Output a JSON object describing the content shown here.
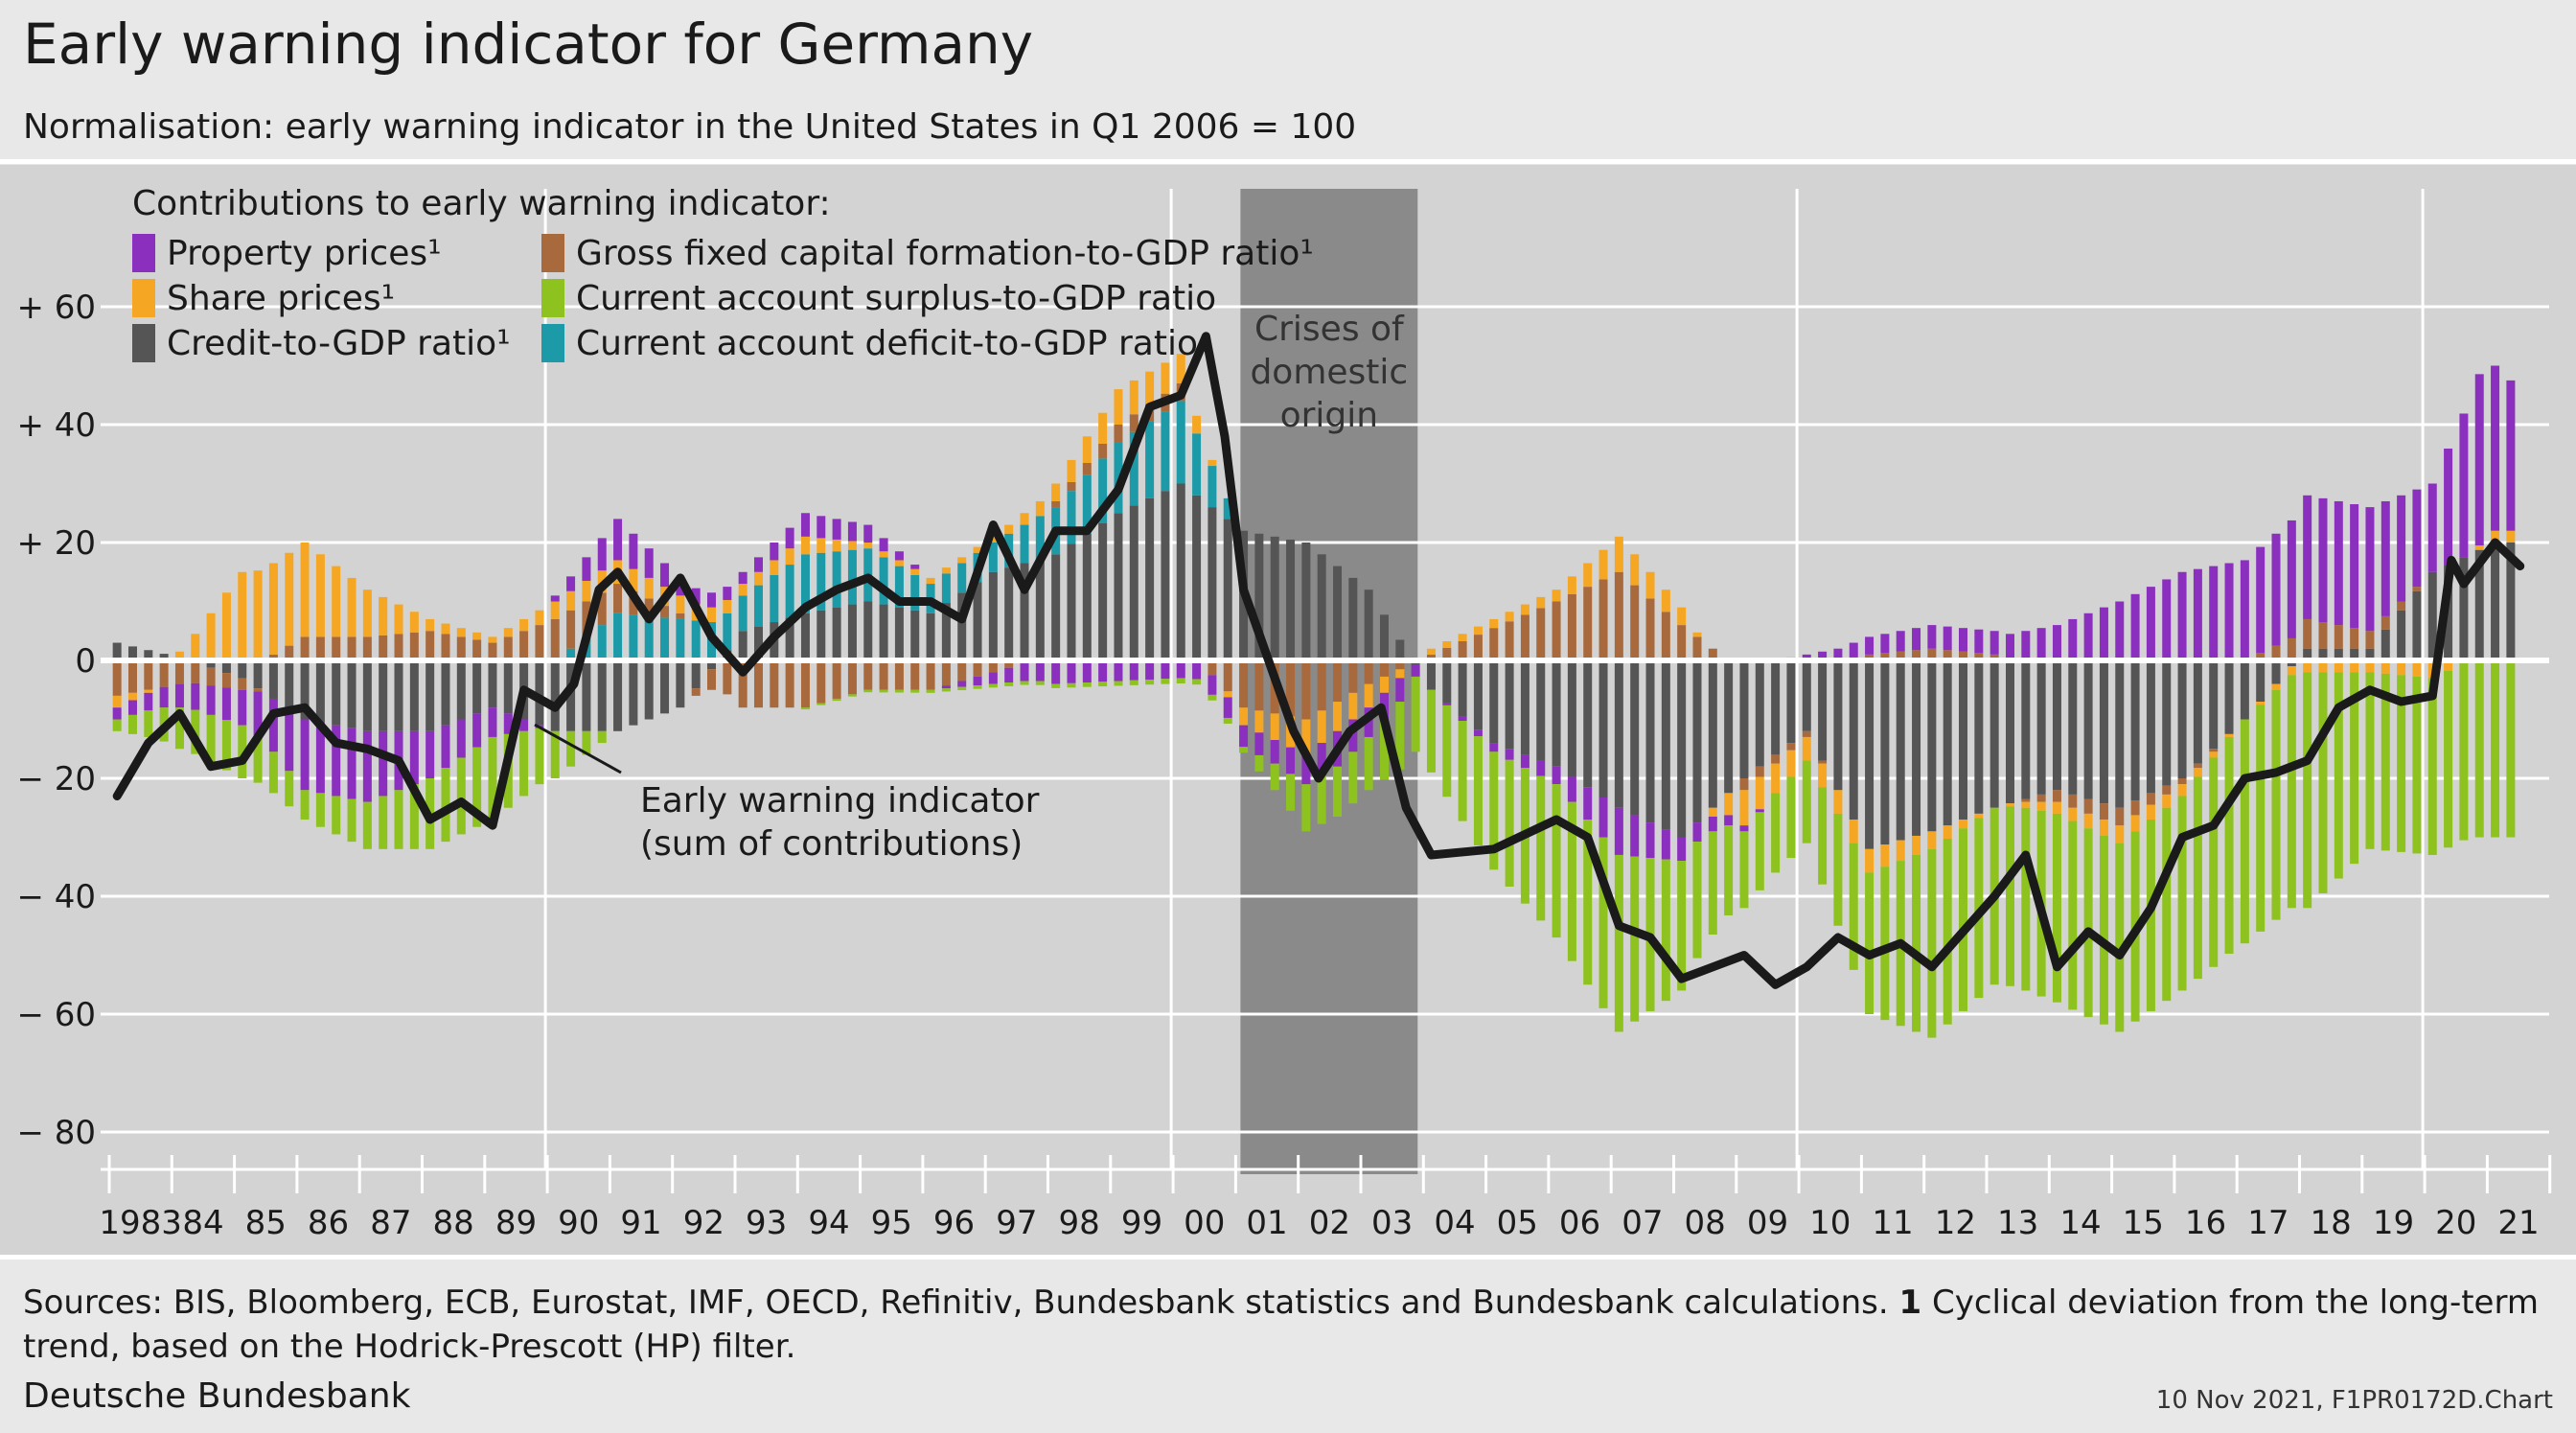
{
  "header": {
    "title": "Early warning indicator for Germany",
    "subtitle": "Normalisation: early warning indicator in the United States in Q1 2006 = 100"
  },
  "footer": {
    "sources_text": "Sources: BIS, Bloomberg, ECB, Eurostat, IMF, OECD, Refinitiv, Bundesbank statistics and Bundesbank calculations.",
    "footnote_marker": "1",
    "footnote_text": "Cyclical deviation from the long-term trend, based on the Hodrick-Prescott (HP) filter.",
    "publisher": "Deutsche Bundesbank",
    "stamp": "10 Nov 2021, F1PR0172D.Chart"
  },
  "chart_data": {
    "type": "bar",
    "stacked": true,
    "frequency": "quarterly",
    "x_start": "1983 Q1",
    "x_end": "2021 Q2",
    "x_tick_labels": [
      "1983",
      "84",
      "85",
      "86",
      "87",
      "88",
      "89",
      "90",
      "91",
      "92",
      "93",
      "94",
      "95",
      "96",
      "97",
      "98",
      "99",
      "00",
      "01",
      "02",
      "03",
      "04",
      "05",
      "06",
      "07",
      "08",
      "09",
      "10",
      "11",
      "12",
      "13",
      "14",
      "15",
      "16",
      "17",
      "18",
      "19",
      "20",
      "21"
    ],
    "ylim": [
      -85,
      80
    ],
    "y_ticks": [
      60,
      40,
      20,
      0,
      -20,
      -40,
      -60,
      -80
    ],
    "y_tick_labels": [
      "+ 60",
      "+ 40",
      "+ 20",
      "0",
      "− 20",
      "− 40",
      "− 60",
      "− 80"
    ],
    "grid": true,
    "legend_title": "Contributions to early warning indicator:",
    "legend_position": "top-left",
    "series": [
      {
        "name": "Property prices¹",
        "color": "#8a2fbe",
        "key": "property"
      },
      {
        "name": "Share prices¹",
        "color": "#f5a623",
        "key": "share"
      },
      {
        "name": "Credit-to-GDP ratio¹",
        "color": "#555555",
        "key": "credit"
      },
      {
        "name": "Gross fixed capital formation-to-GDP ratio¹",
        "color": "#a86a3c",
        "key": "gfcf"
      },
      {
        "name": "Current account surplus-to-GDP ratio",
        "color": "#8dc21f",
        "key": "ca_surplus"
      },
      {
        "name": "Current account deficit-to-GDP ratio",
        "color": "#1d9aa8",
        "key": "ca_deficit"
      }
    ],
    "line_series": {
      "name": "Early warning indicator (sum of contributions)",
      "color": "#1a1a1a"
    },
    "annotations": {
      "crisis_period": {
        "start": "2001 Q1",
        "end": "2003 Q4",
        "label_lines": [
          "Crises of",
          "domestic",
          "origin"
        ],
        "color": "#8a8a8a"
      },
      "line_label_lines": [
        "Early warning indicator",
        "(sum of contributions)"
      ]
    },
    "keyframes": {
      "property": [
        [
          1983,
          -2
        ],
        [
          1984,
          -4
        ],
        [
          1985,
          -6
        ],
        [
          1986,
          -12
        ],
        [
          1987,
          -12
        ],
        [
          1988,
          -8
        ],
        [
          1989,
          -5
        ],
        [
          1990,
          1
        ],
        [
          1991,
          7
        ],
        [
          1992,
          3
        ],
        [
          1993,
          2
        ],
        [
          1994,
          4
        ],
        [
          1995,
          3
        ],
        [
          1996,
          0
        ],
        [
          1998,
          -4
        ],
        [
          2000,
          -3
        ],
        [
          2001.5,
          -4
        ],
        [
          2002.5,
          -6
        ],
        [
          2003.5,
          -4
        ],
        [
          2004,
          0
        ],
        [
          2006,
          -3
        ],
        [
          2007,
          -8
        ],
        [
          2008,
          -4
        ],
        [
          2009,
          -1
        ],
        [
          2010,
          1
        ],
        [
          2011,
          3
        ],
        [
          2012,
          4
        ],
        [
          2013,
          4
        ],
        [
          2014,
          6
        ],
        [
          2015,
          10
        ],
        [
          2016,
          15
        ],
        [
          2017,
          17
        ],
        [
          2018,
          21
        ],
        [
          2019,
          21
        ],
        [
          2020,
          15
        ],
        [
          2020.8,
          30
        ],
        [
          2021.4,
          24
        ]
      ],
      "share": [
        [
          1983,
          -2
        ],
        [
          1984,
          1
        ],
        [
          1985,
          15
        ],
        [
          1986,
          16
        ],
        [
          1987,
          8
        ],
        [
          1988,
          2
        ],
        [
          1989,
          1
        ],
        [
          1990,
          3
        ],
        [
          1991,
          4
        ],
        [
          1993,
          2
        ],
        [
          1994,
          3
        ],
        [
          1995,
          1
        ],
        [
          1997,
          1
        ],
        [
          1998,
          3
        ],
        [
          1999,
          6
        ],
        [
          2000,
          5
        ],
        [
          2001,
          -3
        ],
        [
          2002,
          -6
        ],
        [
          2003,
          -4
        ],
        [
          2004,
          1
        ],
        [
          2006,
          2
        ],
        [
          2007,
          6
        ],
        [
          2008,
          3
        ],
        [
          2009,
          -6
        ],
        [
          2010,
          -4
        ],
        [
          2011,
          -4
        ],
        [
          2012,
          -3
        ],
        [
          2013,
          0
        ],
        [
          2014,
          -2
        ],
        [
          2015,
          -3
        ],
        [
          2016,
          -2
        ],
        [
          2017,
          0
        ],
        [
          2018,
          -2
        ],
        [
          2019,
          -2
        ],
        [
          2020,
          -3
        ],
        [
          2021,
          2
        ]
      ],
      "credit": [
        [
          1983,
          3
        ],
        [
          1984,
          0.5
        ],
        [
          1985,
          -3
        ],
        [
          1986,
          -10
        ],
        [
          1987,
          -12
        ],
        [
          1988,
          -12
        ],
        [
          1989,
          -8
        ],
        [
          1990,
          -12
        ],
        [
          1991,
          -12
        ],
        [
          1992,
          -8
        ],
        [
          1993,
          5
        ],
        [
          1994,
          8
        ],
        [
          1995,
          10
        ],
        [
          1996,
          8
        ],
        [
          1997,
          15
        ],
        [
          1998,
          18
        ],
        [
          1999,
          25
        ],
        [
          2000,
          30
        ],
        [
          2001,
          22
        ],
        [
          2002,
          20
        ],
        [
          2003,
          12
        ],
        [
          2004,
          -5
        ],
        [
          2005,
          -14
        ],
        [
          2006,
          -18
        ],
        [
          2007,
          -25
        ],
        [
          2008,
          -30
        ],
        [
          2009,
          -20
        ],
        [
          2010,
          -12
        ],
        [
          2011,
          -32
        ],
        [
          2012,
          -29
        ],
        [
          2013,
          -25
        ],
        [
          2014,
          -22
        ],
        [
          2015,
          -25
        ],
        [
          2016,
          -20
        ],
        [
          2017,
          -10
        ],
        [
          2018,
          2
        ],
        [
          2019,
          2
        ],
        [
          2020,
          15
        ],
        [
          2021,
          20
        ]
      ],
      "gfcf": [
        [
          1983,
          -6
        ],
        [
          1984,
          -4
        ],
        [
          1985,
          -2
        ],
        [
          1986,
          4
        ],
        [
          1987,
          4
        ],
        [
          1988,
          5
        ],
        [
          1989,
          3
        ],
        [
          1990,
          7
        ],
        [
          1991,
          5
        ],
        [
          1992,
          1
        ],
        [
          1993,
          -8
        ],
        [
          1994,
          -8
        ],
        [
          1995,
          -5
        ],
        [
          1996,
          -5
        ],
        [
          1997,
          -2
        ],
        [
          1998,
          1
        ],
        [
          1999,
          3
        ],
        [
          2000,
          3
        ],
        [
          2001,
          -8
        ],
        [
          2002,
          -10
        ],
        [
          2003,
          -4
        ],
        [
          2004,
          1
        ],
        [
          2006,
          10
        ],
        [
          2007,
          15
        ],
        [
          2008,
          6
        ],
        [
          2009,
          -2
        ],
        [
          2010,
          -1
        ],
        [
          2011,
          1
        ],
        [
          2012,
          2
        ],
        [
          2013,
          1
        ],
        [
          2014,
          -2
        ],
        [
          2015,
          -3
        ],
        [
          2016,
          -1
        ],
        [
          2017,
          0
        ],
        [
          2018,
          5
        ],
        [
          2019,
          3
        ],
        [
          2020,
          0
        ],
        [
          2021,
          0
        ]
      ],
      "ca_surplus": [
        [
          1983,
          -2
        ],
        [
          1984,
          -7
        ],
        [
          1985,
          -9
        ],
        [
          1986,
          -5
        ],
        [
          1987,
          -8
        ],
        [
          1988,
          -12
        ],
        [
          1989,
          -14
        ],
        [
          1990,
          -8
        ],
        [
          1991,
          0
        ],
        [
          2001,
          -1
        ],
        [
          2002,
          -8
        ],
        [
          2003,
          -9
        ],
        [
          2004,
          -14
        ],
        [
          2005,
          -20
        ],
        [
          2006,
          -26
        ],
        [
          2007,
          -30
        ],
        [
          2008,
          -22
        ],
        [
          2009,
          -13
        ],
        [
          2010,
          -14
        ],
        [
          2011,
          -24
        ],
        [
          2012,
          -32
        ],
        [
          2013,
          -30
        ],
        [
          2014,
          -32
        ],
        [
          2015,
          -32
        ],
        [
          2016,
          -33
        ],
        [
          2017,
          -38
        ],
        [
          2018,
          -40
        ],
        [
          2019,
          -30
        ],
        [
          2020,
          -30
        ],
        [
          2021,
          -30
        ]
      ],
      "ca_deficit": [
        [
          1983,
          0
        ],
        [
          1990,
          0
        ],
        [
          1991,
          8
        ],
        [
          1993,
          6
        ],
        [
          1994,
          10
        ],
        [
          1995,
          9
        ],
        [
          1996,
          5
        ],
        [
          1997,
          5
        ],
        [
          1998,
          8
        ],
        [
          1999,
          12
        ],
        [
          2000,
          14
        ],
        [
          2001,
          0
        ],
        [
          2021,
          0
        ]
      ],
      "ewi": [
        [
          1983,
          -23
        ],
        [
          1983.5,
          -14
        ],
        [
          1984,
          -9
        ],
        [
          1984.5,
          -18
        ],
        [
          1985,
          -17
        ],
        [
          1985.5,
          -9
        ],
        [
          1986,
          -8
        ],
        [
          1986.5,
          -14
        ],
        [
          1987,
          -15
        ],
        [
          1987.5,
          -17
        ],
        [
          1988,
          -27
        ],
        [
          1988.5,
          -24
        ],
        [
          1989,
          -28
        ],
        [
          1989.5,
          -5
        ],
        [
          1990,
          -8
        ],
        [
          1990.3,
          -4
        ],
        [
          1990.7,
          12
        ],
        [
          1991,
          15
        ],
        [
          1991.5,
          7
        ],
        [
          1992,
          14
        ],
        [
          1992.5,
          4
        ],
        [
          1993,
          -2
        ],
        [
          1993.5,
          4
        ],
        [
          1994,
          9
        ],
        [
          1994.5,
          12
        ],
        [
          1995,
          14
        ],
        [
          1995.5,
          10
        ],
        [
          1996,
          10
        ],
        [
          1996.5,
          7
        ],
        [
          1997,
          23
        ],
        [
          1997.5,
          12
        ],
        [
          1998,
          22
        ],
        [
          1998.5,
          22
        ],
        [
          1999,
          29
        ],
        [
          1999.5,
          43
        ],
        [
          2000,
          45
        ],
        [
          2000.4,
          55
        ],
        [
          2000.7,
          38
        ],
        [
          2001,
          12
        ],
        [
          2001.3,
          3
        ],
        [
          2001.8,
          -12
        ],
        [
          2002.2,
          -20
        ],
        [
          2002.7,
          -12
        ],
        [
          2003.2,
          -8
        ],
        [
          2003.6,
          -25
        ],
        [
          2004,
          -33
        ],
        [
          2005,
          -32
        ],
        [
          2006,
          -27
        ],
        [
          2006.5,
          -30
        ],
        [
          2007,
          -45
        ],
        [
          2007.5,
          -47
        ],
        [
          2008,
          -54
        ],
        [
          2008.5,
          -52
        ],
        [
          2009,
          -50
        ],
        [
          2009.5,
          -55
        ],
        [
          2010,
          -52
        ],
        [
          2010.5,
          -47
        ],
        [
          2011,
          -50
        ],
        [
          2011.5,
          -48
        ],
        [
          2012,
          -52
        ],
        [
          2012.5,
          -46
        ],
        [
          2013,
          -40
        ],
        [
          2013.5,
          -33
        ],
        [
          2014,
          -52
        ],
        [
          2014.5,
          -46
        ],
        [
          2015,
          -50
        ],
        [
          2015.5,
          -42
        ],
        [
          2016,
          -30
        ],
        [
          2016.5,
          -28
        ],
        [
          2017,
          -20
        ],
        [
          2017.5,
          -19
        ],
        [
          2018,
          -17
        ],
        [
          2018.5,
          -8
        ],
        [
          2019,
          -5
        ],
        [
          2019.5,
          -7
        ],
        [
          2020,
          -6
        ],
        [
          2020.3,
          17
        ],
        [
          2020.5,
          13
        ],
        [
          2021,
          20
        ],
        [
          2021.4,
          16
        ]
      ]
    }
  }
}
